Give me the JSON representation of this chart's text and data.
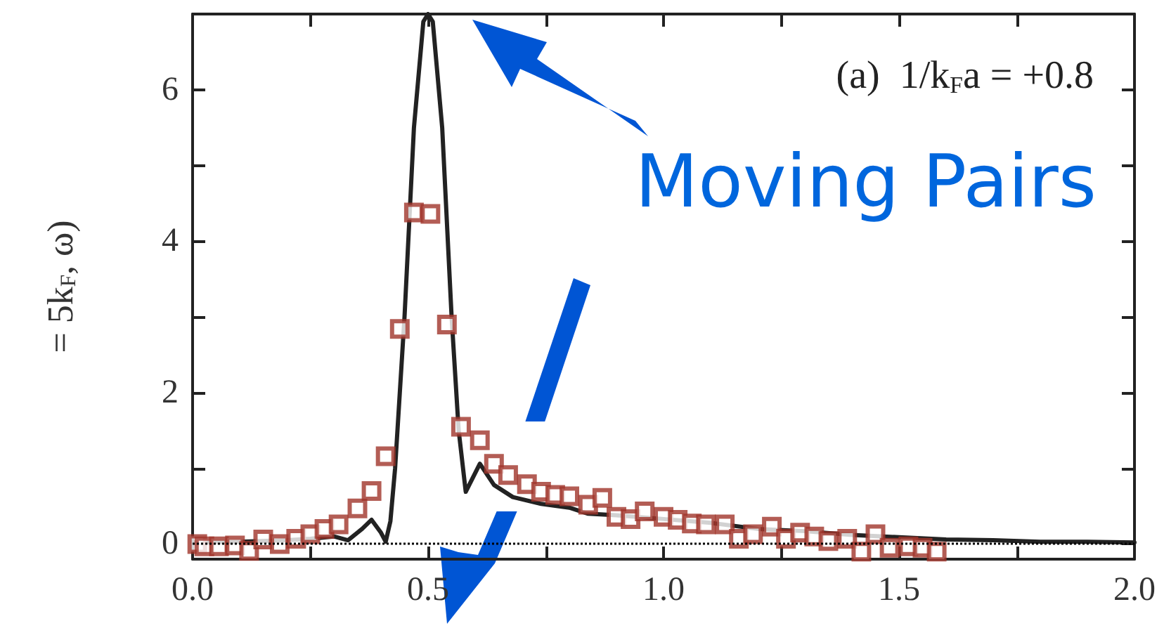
{
  "chart_data": {
    "type": "scatter",
    "ylabel": "= 5k$_{F}$, ω)",
    "annotations": [
      "(a)  1/k$_{F}$a = +0.8",
      "Moving Pairs"
    ],
    "xlim": [
      0,
      2.0
    ],
    "ylim": [
      -0.2,
      7
    ],
    "xticks": [
      {
        "value": 0,
        "label": "0.0"
      },
      {
        "value": 0.25,
        "label": null
      },
      {
        "value": 0.5,
        "label": "0.5"
      },
      {
        "value": 0.75,
        "label": null
      },
      {
        "value": 1.0,
        "label": "1.0"
      },
      {
        "value": 1.25,
        "label": null
      },
      {
        "value": 1.5,
        "label": "1.5"
      },
      {
        "value": 1.75,
        "label": null
      },
      {
        "value": 2.0,
        "label": "2.0"
      }
    ],
    "yticks": [
      0,
      {
        "value": 1,
        "label": null
      },
      2,
      {
        "value": 3,
        "label": null
      },
      4,
      {
        "value": 5,
        "label": null
      },
      6
    ],
    "ref_lines": [
      {
        "axis": "y",
        "value": 0,
        "label": null,
        "color": "#000000",
        "line_style": "dotted"
      }
    ],
    "grid": false,
    "series": [
      {
        "type": "line",
        "color": "#222222",
        "marker": "none",
        "line_style": "solid",
        "x": [
          0,
          0.1,
          0.2,
          0.25,
          0.3,
          0.33,
          0.36,
          0.38,
          0.4,
          0.41,
          0.42,
          0.43,
          0.45,
          0.47,
          0.49,
          0.5,
          0.51,
          0.53,
          0.55,
          0.565,
          0.58,
          0.61,
          0.64,
          0.68,
          0.74,
          0.8,
          0.84,
          0.9,
          1.0,
          1.1,
          1.2,
          1.3,
          1.4,
          1.5,
          1.6,
          1.7,
          1.8,
          1.9,
          2.0
        ],
        "values": [
          0.02,
          0.03,
          0.05,
          0.07,
          0.1,
          0.05,
          0.2,
          0.32,
          0.15,
          0.03,
          0.3,
          1.0,
          3.0,
          5.5,
          6.9,
          7.0,
          6.9,
          5.5,
          3.0,
          1.5,
          0.69,
          1.06,
          0.78,
          0.62,
          0.53,
          0.48,
          0.4,
          0.38,
          0.33,
          0.28,
          0.2,
          0.17,
          0.12,
          0.09,
          0.06,
          0.05,
          0.03,
          0.03,
          0.02
        ]
      },
      {
        "color": "#a0352a",
        "marker": "square",
        "x": [
          0.01,
          0.025,
          0.056,
          0.09,
          0.12,
          0.15,
          0.185,
          0.22,
          0.25,
          0.28,
          0.31,
          0.35,
          0.38,
          0.41,
          0.44,
          0.47,
          0.505,
          0.54,
          0.57,
          0.61,
          0.64,
          0.67,
          0.71,
          0.74,
          0.77,
          0.8,
          0.84,
          0.87,
          0.9,
          0.93,
          0.96,
          1.0,
          1.03,
          1.06,
          1.09,
          1.13,
          1.16,
          1.19,
          1.23,
          1.26,
          1.29,
          1.32,
          1.35,
          1.39,
          1.42,
          1.45,
          1.48,
          1.52,
          1.55,
          1.58
        ],
        "values": [
          0.0,
          -0.03,
          -0.03,
          -0.02,
          -0.09,
          0.06,
          0.0,
          0.07,
          0.13,
          0.2,
          0.26,
          0.47,
          0.7,
          1.16,
          2.84,
          4.38,
          4.36,
          2.9,
          1.55,
          1.37,
          1.06,
          0.91,
          0.79,
          0.69,
          0.65,
          0.63,
          0.52,
          0.61,
          0.36,
          0.33,
          0.43,
          0.36,
          0.32,
          0.27,
          0.26,
          0.26,
          0.07,
          0.13,
          0.23,
          0.07,
          0.15,
          0.1,
          0.04,
          0.07,
          -0.1,
          0.13,
          -0.05,
          -0.03,
          -0.05,
          -0.1
        ]
      }
    ]
  }
}
